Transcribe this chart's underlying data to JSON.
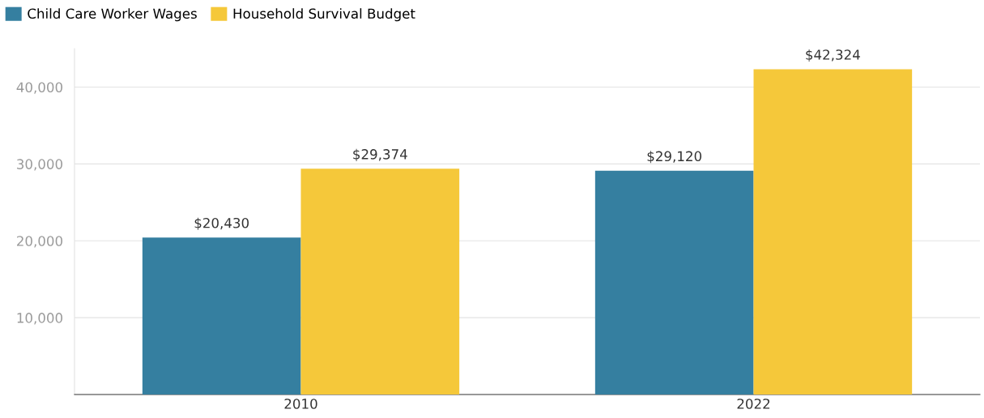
{
  "chart_data": {
    "type": "bar",
    "categories": [
      "2010",
      "2022"
    ],
    "series": [
      {
        "name": "Child Care Worker Wages",
        "color": "#357fa0",
        "values": [
          20430,
          29120
        ],
        "value_labels": [
          "$20,430",
          "$29,120"
        ]
      },
      {
        "name": "Household Survival Budget",
        "color": "#f5c83a",
        "values": [
          29374,
          42324
        ],
        "value_labels": [
          "$29,374",
          "$42,324"
        ]
      }
    ],
    "ylim": [
      0,
      45000
    ],
    "yticks": [
      {
        "value": 10000,
        "label": "10,000"
      },
      {
        "value": 20000,
        "label": "20,000"
      },
      {
        "value": 30000,
        "label": "30,000"
      },
      {
        "value": 40000,
        "label": "40,000"
      }
    ],
    "grid": "y",
    "legend": "top left"
  }
}
